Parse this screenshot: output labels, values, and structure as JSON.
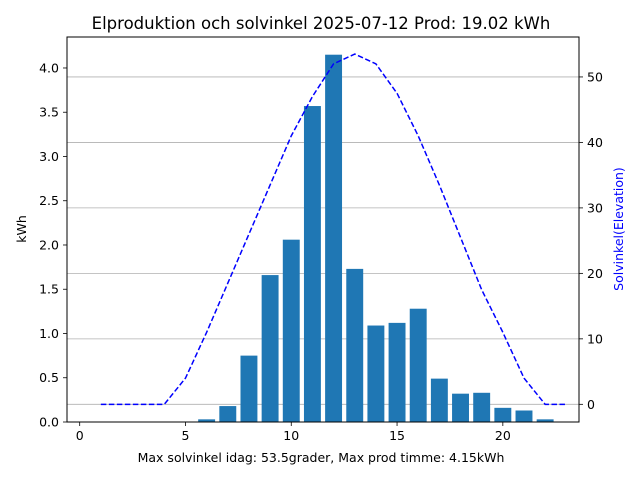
{
  "chart_data": {
    "type": "bar",
    "title": "Elproduktion och solvinkel 2025-07-12 Prod: 19.02 kWh",
    "xlabel": "Max solvinkel idag: 53.5grader, Max prod timme: 4.15kWh",
    "ylabel": "kWh",
    "y2label": "Solvinkel(Elevation)",
    "xlim": [
      -0.6,
      23.6
    ],
    "ylim": [
      0,
      4.35
    ],
    "y2lim": [
      -2.7,
      56.1
    ],
    "xticks": [
      0,
      5,
      10,
      15,
      20
    ],
    "yticks": [
      0.0,
      0.5,
      1.0,
      1.5,
      2.0,
      2.5,
      3.0,
      3.5,
      4.0
    ],
    "ytick_labels": [
      "0.0",
      "0.5",
      "1.0",
      "1.5",
      "2.0",
      "2.5",
      "3.0",
      "3.5",
      "4.0"
    ],
    "y2ticks": [
      0,
      10,
      20,
      30,
      40,
      50
    ],
    "grid": "horizontal lines at right-axis ticks",
    "series": [
      {
        "kind": "bar",
        "axis": "left",
        "color": "#1f77b4",
        "x": [
          6,
          7,
          8,
          9,
          10,
          11,
          12,
          13,
          14,
          15,
          16,
          17,
          18,
          19,
          20,
          21,
          22
        ],
        "values": [
          0.03,
          0.18,
          0.75,
          1.66,
          2.06,
          3.57,
          4.15,
          1.73,
          1.09,
          1.12,
          1.28,
          0.49,
          0.32,
          0.33,
          0.16,
          0.13,
          0.03
        ]
      },
      {
        "kind": "line",
        "axis": "right",
        "style": "dashed",
        "color": "#0000ff",
        "x": [
          1,
          2,
          3,
          4,
          5,
          6,
          7,
          8,
          9,
          10,
          11,
          12,
          13,
          14,
          15,
          16,
          17,
          18,
          19,
          20,
          21,
          22,
          23
        ],
        "values": [
          0,
          0,
          0,
          0,
          4,
          11,
          18.5,
          26,
          33.5,
          41,
          47,
          52,
          53.5,
          52,
          47.5,
          41,
          33.5,
          25.5,
          17.5,
          11,
          4,
          0,
          0
        ]
      }
    ]
  }
}
